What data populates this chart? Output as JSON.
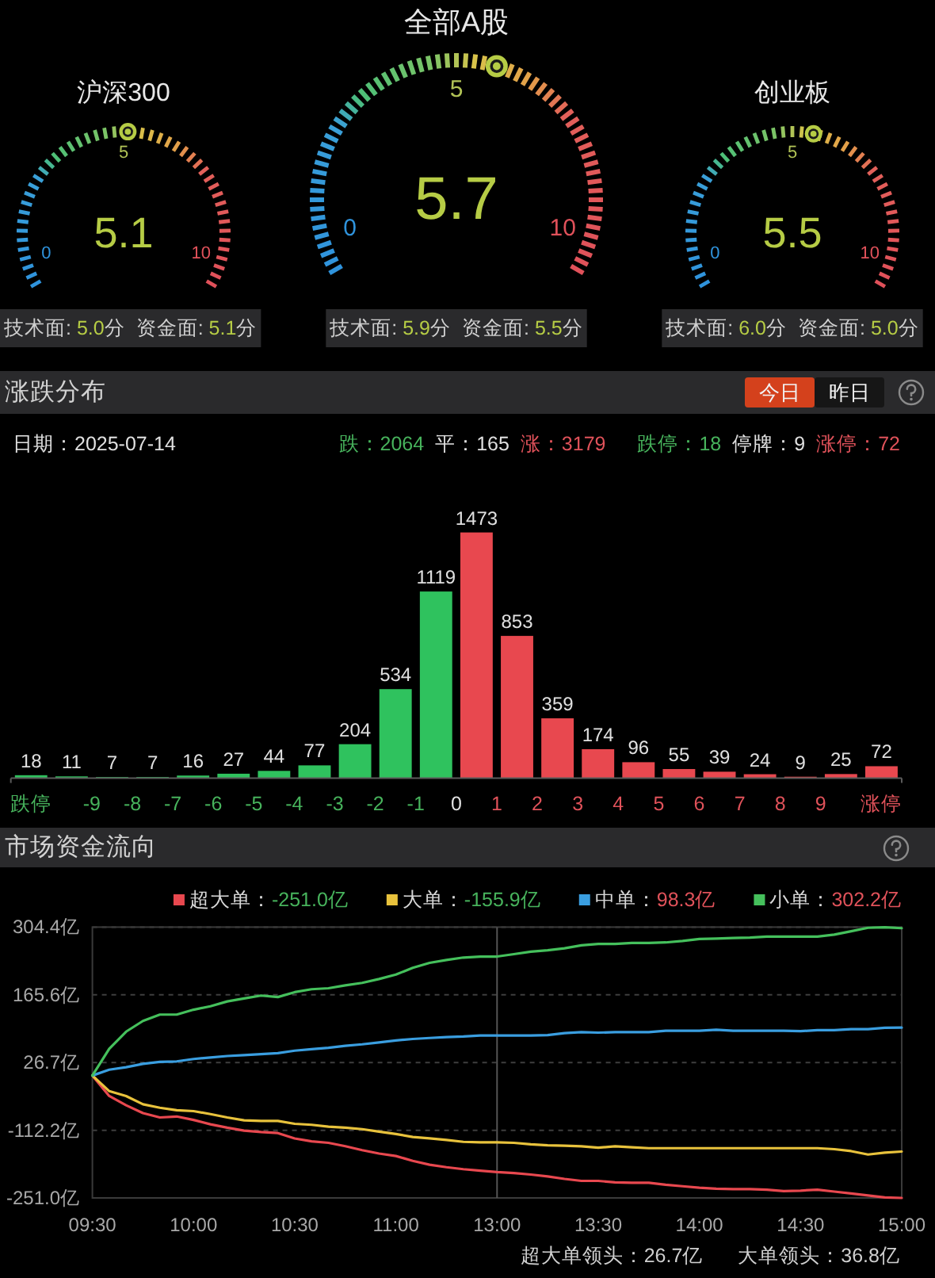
{
  "chart_data": [
    {
      "type": "other",
      "title": "沪深300",
      "values": [
        5.1
      ],
      "color": "#b6cc45",
      "data_labels": true,
      "annotations": [
        "0",
        "5",
        "10",
        "技术面: 5.0分",
        "资金面: 5.1分"
      ]
    },
    {
      "type": "other",
      "title": "全部A股",
      "values": [
        5.7
      ],
      "color": "#b6cc45",
      "data_labels": true,
      "annotations": [
        "0",
        "5",
        "10",
        "技术面: 5.9分",
        "资金面: 5.5分"
      ]
    },
    {
      "type": "other",
      "title": "创业板",
      "values": [
        5.5
      ],
      "color": "#b6cc45",
      "data_labels": true,
      "annotations": [
        "0",
        "5",
        "10",
        "技术面: 6.0分",
        "资金面: 5.0分"
      ]
    },
    {
      "type": "bar",
      "title": "涨跌分布",
      "x": [
        -10.5,
        -9.5,
        -8.5,
        -7.5,
        -6.5,
        -5.5,
        -4.5,
        -3.5,
        -2.5,
        -1.5,
        -0.5,
        0.5,
        1.5,
        2.5,
        3.5,
        4.5,
        5.5,
        6.5,
        7.5,
        8.5,
        9.5,
        10.5
      ],
      "values": [
        18,
        11,
        7,
        7,
        16,
        27,
        44,
        77,
        204,
        534,
        1119,
        1473,
        853,
        359,
        174,
        96,
        55,
        39,
        24,
        9,
        25,
        72
      ],
      "colors": [
        "#2fc25e",
        "#2fc25e",
        "#2fc25e",
        "#2fc25e",
        "#2fc25e",
        "#2fc25e",
        "#2fc25e",
        "#2fc25e",
        "#2fc25e",
        "#2fc25e",
        "#2fc25e",
        "#e8484f",
        "#e8484f",
        "#e8484f",
        "#e8484f",
        "#e8484f",
        "#e8484f",
        "#e8484f",
        "#e8484f",
        "#e8484f",
        "#e8484f",
        "#e8484f"
      ],
      "xlim": [
        -11,
        11
      ],
      "xticks": [
        {
          "value": -10.5,
          "label": "跌停"
        },
        -9,
        -8,
        -7,
        -6,
        -5,
        -4,
        -3,
        -2,
        -1,
        0,
        1,
        2,
        3,
        4,
        5,
        6,
        7,
        8,
        9,
        {
          "value": 10.5,
          "label": "涨停"
        }
      ],
      "tick_labels": "x",
      "data_labels": true,
      "annotations": [
        "今日",
        "昨日",
        "日期：2025-07-14",
        "跌：2064",
        "平：165",
        "涨：3179",
        "跌停：18",
        "停牌：9",
        "涨停：72"
      ]
    },
    {
      "type": "line",
      "title": "市场资金流向",
      "categories": [
        "09:30",
        null,
        null,
        null,
        null,
        null,
        "10:00",
        null,
        null,
        null,
        null,
        null,
        "10:30",
        null,
        null,
        null,
        null,
        null,
        "11:00",
        null,
        null,
        null,
        null,
        null,
        "13:00",
        null,
        null,
        null,
        null,
        null,
        "13:30",
        null,
        null,
        null,
        null,
        null,
        "14:00",
        null,
        null,
        null,
        null,
        null,
        "14:30",
        null,
        null,
        null,
        null,
        null,
        "15:00"
      ],
      "series": [
        {
          "name": "超大单：-251.0亿",
          "color": "#e8484f",
          "values": [
            0,
            -42,
            -61,
            -77,
            -86,
            -84,
            -91,
            -100,
            -107,
            -113,
            -116,
            -118,
            -129,
            -135,
            -138,
            -145,
            -153,
            -160,
            -165,
            -175,
            -183,
            -188,
            -192,
            -195,
            -198,
            -200,
            -203,
            -207,
            -212,
            -216,
            -216,
            -219,
            -220,
            -220,
            -224,
            -227,
            -230,
            -232,
            -233,
            -233,
            -234,
            -237,
            -236,
            -234,
            -238,
            -242,
            -246,
            -250,
            -251.0
          ]
        },
        {
          "name": "大单：-155.9亿",
          "color": "#e8c23c",
          "values": [
            0,
            -32,
            -42,
            -59,
            -66,
            -71,
            -73,
            -79,
            -86,
            -92,
            -93,
            -93,
            -99,
            -101,
            -105,
            -107,
            -110,
            -115,
            -120,
            -126,
            -129,
            -132,
            -136,
            -137,
            -137,
            -138,
            -141,
            -143,
            -144,
            -145,
            -148,
            -145,
            -147,
            -149,
            -149,
            -149,
            -149,
            -149,
            -149,
            -149,
            -149,
            -149,
            -149,
            -149,
            -151,
            -155,
            -162,
            -158,
            -155.9
          ]
        },
        {
          "name": "中单：98.3亿",
          "color": "#3a9ee0",
          "values": [
            0,
            12,
            17,
            24,
            28,
            29,
            34,
            37,
            40,
            42,
            44,
            46,
            51,
            54,
            57,
            61,
            64,
            68,
            72,
            75,
            77,
            79,
            80,
            82,
            82,
            82,
            82,
            83,
            87,
            89,
            88,
            89,
            89,
            89,
            92,
            92,
            92,
            94,
            92,
            92,
            92,
            92,
            91,
            93,
            93,
            95,
            95,
            98,
            98.3
          ]
        },
        {
          "name": "小单：302.2亿",
          "color": "#45c05c",
          "values": [
            0,
            55,
            90,
            112,
            125,
            125,
            135,
            142,
            152,
            158,
            164,
            161,
            171,
            177,
            179,
            185,
            190,
            198,
            207,
            221,
            231,
            237,
            242,
            244,
            244,
            249,
            254,
            257,
            261,
            267,
            270,
            270,
            272,
            272,
            273,
            276,
            280,
            281,
            282,
            283,
            285,
            285,
            285,
            285,
            289,
            296,
            303,
            304,
            302.2
          ]
        }
      ],
      "ylim": [
        -251.0,
        304.4
      ],
      "yticks": [
        {
          "value": -251.0,
          "label": "-251.0亿"
        },
        {
          "value": -112.2,
          "label": "-112.2亿"
        },
        {
          "value": 26.7,
          "label": "26.7亿"
        },
        {
          "value": 165.6,
          "label": "165.6亿"
        },
        {
          "value": 304.4,
          "label": "304.4亿"
        }
      ],
      "grid": "y",
      "legend": "top right",
      "ref_lines": [
        {
          "axis": "x",
          "value": "13:00",
          "color": "#555555"
        }
      ],
      "annotations": [
        "超大单领头：26.7亿",
        "大单领头：36.8亿"
      ]
    }
  ]
}
